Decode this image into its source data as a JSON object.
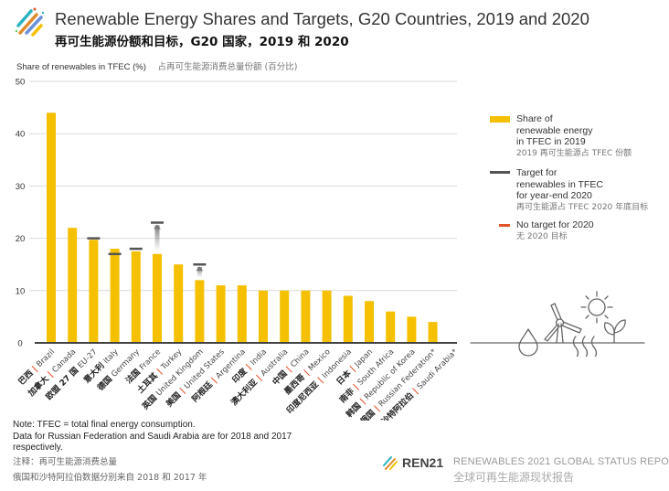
{
  "header": {
    "title": "Renewable Energy Shares and Targets, G20 Countries, 2019 and 2020",
    "subtitle_zh": "再可生能源份额和目标，G20 国家，2019 和 2020",
    "logo_icon": "ren21-stripes-logo"
  },
  "colors": {
    "bar": "#F5C000",
    "target": "#555555",
    "no_target": "#E2552B",
    "grid": "#d9d9d9",
    "axis": "#444444"
  },
  "chart_data": {
    "type": "bar",
    "title": "Renewable Energy Shares and Targets, G20 Countries, 2019 and 2020",
    "ylabel": "Share of renewables in TFEC (%)",
    "ylabel_zh": "占再可生能源消费总量份额 (百分比)",
    "xlabel": "",
    "ylim": [
      0,
      50
    ],
    "yticks": [
      0,
      10,
      20,
      30,
      40,
      50
    ],
    "grid": true,
    "legend_position": "right",
    "categories": [
      {
        "en": "Brazil",
        "zh": "巴西",
        "value": 44,
        "target": null,
        "no_target": true
      },
      {
        "en": "Canada",
        "zh": "加拿大",
        "value": 22,
        "target": null,
        "no_target": true
      },
      {
        "en": "EU-27",
        "zh": "欧盟 27 国",
        "value": 19.7,
        "target": 20,
        "no_target": false
      },
      {
        "en": "Italy",
        "zh": "意大利",
        "value": 18,
        "target": 17,
        "no_target": false
      },
      {
        "en": "Germany",
        "zh": "德国",
        "value": 17.5,
        "target": 18,
        "no_target": false
      },
      {
        "en": "France",
        "zh": "法国",
        "value": 17,
        "target": 23,
        "no_target": false
      },
      {
        "en": "Turkey",
        "zh": "土耳其",
        "value": 15,
        "target": null,
        "no_target": true
      },
      {
        "en": "United Kingdom",
        "zh": "英国",
        "value": 12,
        "target": 15,
        "no_target": false
      },
      {
        "en": "United States",
        "zh": "美国",
        "value": 11,
        "target": null,
        "no_target": true
      },
      {
        "en": "Argentina",
        "zh": "阿根廷",
        "value": 11,
        "target": null,
        "no_target": true
      },
      {
        "en": "India",
        "zh": "印度",
        "value": 10,
        "target": null,
        "no_target": true
      },
      {
        "en": "Australia",
        "zh": "澳大利亚",
        "value": 10,
        "target": null,
        "no_target": true
      },
      {
        "en": "China",
        "zh": "中国",
        "value": 10,
        "target": null,
        "no_target": true
      },
      {
        "en": "Mexico",
        "zh": "墨西哥",
        "value": 10,
        "target": null,
        "no_target": true
      },
      {
        "en": "Indonesia",
        "zh": "印度尼西亚",
        "value": 9,
        "target": null,
        "no_target": true
      },
      {
        "en": "Japan",
        "zh": "日本",
        "value": 8,
        "target": null,
        "no_target": true
      },
      {
        "en": "South Africa",
        "zh": "南非",
        "value": 6,
        "target": null,
        "no_target": true
      },
      {
        "en": "Republic of Korea",
        "zh": "韩国",
        "value": 5,
        "target": null,
        "no_target": true
      },
      {
        "en": "Russian Federation*",
        "zh": "俄国",
        "value": 4,
        "target": null,
        "no_target": true
      },
      {
        "en": "Saudi Arabia*",
        "zh": "沙特阿拉伯",
        "value": 0,
        "target": null,
        "no_target": true
      }
    ],
    "legend": [
      {
        "key": "share",
        "label": "Share of renewable energy in TFEC in 2019",
        "label_zh": "2019 再可生能源占 TFEC 份额"
      },
      {
        "key": "target",
        "label": "Target for renewables in TFEC for year-end 2020",
        "label_zh": "再可生能源占 TFEC 2020 年底目标"
      },
      {
        "key": "no_target",
        "label": "No target for 2020",
        "label_zh": "无 2020 目标"
      }
    ]
  },
  "legend": {
    "share_lines": [
      "Share of",
      "renewable energy",
      "in TFEC in 2019"
    ],
    "share_zh": "2019 再可生能源占 TFEC 份额",
    "target_lines": [
      "Target for",
      "renewables in TFEC",
      "for year-end 2020"
    ],
    "target_zh": "再可生能源占 TFEC 2020 年底目标",
    "no_target_label": "No target for 2020",
    "no_target_zh": "无 2020 目标"
  },
  "notes": {
    "line1": "Note: TFEC = total final energy consumption.",
    "line2": "Data for Russian Federation and Saudi Arabia are for 2018 and 2017",
    "line3": "respectively.",
    "zh1": "注释：再可生能源消费总量",
    "zh2": "俄国和沙特阿拉伯数据分别来自 2018 和 2017 年"
  },
  "footer": {
    "brand": "REN21",
    "report": "RENEWABLES 2021 GLOBAL STATUS REPORT",
    "report_zh": "全球可再生能源现状报告"
  },
  "illustration": {
    "icons": [
      "water-drop-icon",
      "wind-turbine-icon",
      "sun-icon",
      "geothermal-heat-icon",
      "plant-sprout-icon"
    ]
  }
}
